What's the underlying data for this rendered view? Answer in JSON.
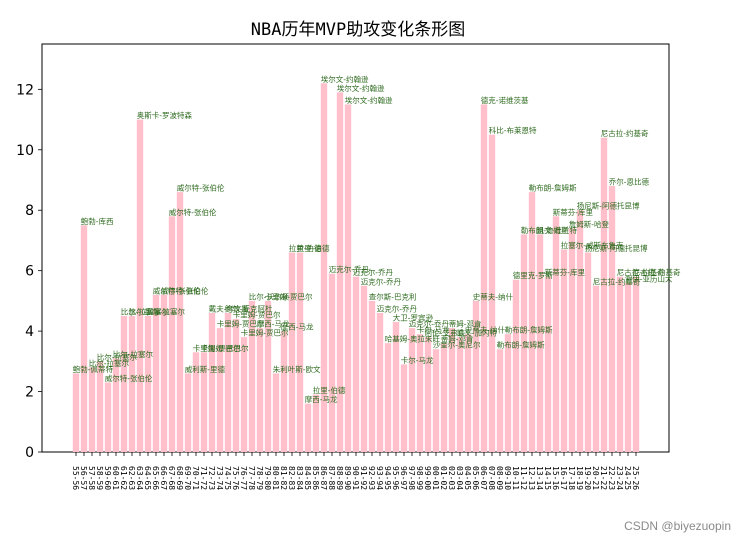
{
  "chart_data": {
    "type": "bar",
    "title": "NBA历年MVP助攻变化条形图",
    "xlabel": "",
    "ylabel": "",
    "ylim": [
      0,
      13.5
    ],
    "yticks": [
      0,
      2,
      4,
      6,
      8,
      10,
      12
    ],
    "grid": false,
    "legend": "none",
    "bar_color": "#ffc0cb",
    "label_color": "#2e6b1f",
    "categories": [
      "55-56",
      "56-57",
      "57-58",
      "58-59",
      "59-60",
      "60-61",
      "61-62",
      "62-63",
      "63-64",
      "64-65",
      "65-66",
      "66-67",
      "67-68",
      "68-69",
      "69-70",
      "70-71",
      "71-72",
      "72-73",
      "73-74",
      "74-75",
      "75-76",
      "76-77",
      "77-78",
      "78-79",
      "79-80",
      "80-81",
      "81-82",
      "82-83",
      "83-84",
      "84-85",
      "85-86",
      "86-87",
      "87-88",
      "88-89",
      "89-90",
      "90-91",
      "91-92",
      "92-93",
      "93-94",
      "94-95",
      "95-96",
      "96-97",
      "97-98",
      "98-99",
      "99-00",
      "00-01",
      "01-02",
      "02-03",
      "03-04",
      "04-05",
      "05-06",
      "06-07",
      "07-08",
      "08-09",
      "09-10",
      "10-11",
      "11-12",
      "12-13",
      "13-14",
      "14-15",
      "15-16",
      "16-17",
      "17-18",
      "18-19",
      "19-20",
      "20-21",
      "21-22",
      "22-23",
      "23-24",
      "24-25",
      "25-26"
    ],
    "values": [
      2.6,
      7.5,
      2.8,
      3.0,
      2.3,
      3.1,
      4.5,
      4.5,
      11.0,
      4.5,
      5.2,
      5.2,
      7.8,
      8.6,
      2.6,
      3.3,
      3.3,
      4.6,
      4.1,
      4.6,
      4.4,
      3.8,
      5.0,
      4.1,
      5.0,
      2.6,
      4.0,
      6.6,
      6.6,
      1.6,
      1.9,
      12.2,
      5.9,
      11.9,
      11.5,
      5.8,
      5.5,
      5.0,
      4.6,
      3.6,
      4.3,
      2.9,
      4.1,
      3.9,
      3.8,
      3.4,
      3.6,
      4.1,
      3.8,
      3.9,
      5.0,
      11.5,
      10.5,
      3.4,
      3.9,
      5.7,
      7.2,
      8.6,
      7.2,
      5.8,
      7.8,
      6.7,
      7.4,
      8.0,
      6.6,
      5.5,
      10.4,
      8.8,
      5.8,
      5.6,
      5.8
    ],
    "labels": [
      "鲍勃-佩蒂特",
      "鲍勃-库西",
      "比尔-拉塞尔",
      "比尔-拉塞尔",
      "威尔特-张伯伦",
      "比尔-拉塞尔",
      "比尔-拉塞尔",
      "比尔-拉塞尔",
      "奥斯卡-罗波特森",
      "比尔-拉塞尔",
      "威尔特-张伯伦",
      "威尔特-张伯伦",
      "威尔特-张伯伦",
      "威尔特-张伯伦",
      "威利斯-里德",
      "卡里姆-贾巴尔",
      "卡里姆-贾巴尔",
      "戴夫-考文斯",
      "卡里姆-贾巴尔",
      "鲍勃-麦克阿杜",
      "卡里姆-贾巴尔",
      "卡里姆-贾巴尔",
      "比尔-沃尔顿",
      "摩西-马龙",
      "卡里姆-贾巴尔",
      "朱利叶斯-欧文",
      "摩西-马龙",
      "拉里-伯德",
      "拉里-伯德",
      "摩西-马龙",
      "拉里-伯德",
      "埃尔文-约翰逊",
      "迈克尔-乔丹",
      "埃尔文-约翰逊",
      "埃尔文-约翰逊",
      "迈克尔-乔丹",
      "迈克尔-乔丹",
      "查尔斯-巴克利",
      "迈克尔-乔丹",
      "哈基姆-奥拉朱旺",
      "大卫-罗宾逊",
      "卡尔-马龙",
      "迈克尔-乔丹",
      "卡尔-马龙",
      "阿伦-艾弗森",
      "沙奎尔-奥尼尔",
      "蒂姆-邓肯",
      "蒂姆-邓肯",
      "凯文-加内特",
      "史蒂夫-纳什",
      "史蒂夫-纳什",
      "德克-诺维茨基",
      "科比-布莱恩特",
      "勒布朗-詹姆斯",
      "勒布朗-詹姆斯",
      "德里克-罗斯",
      "勒布朗-詹姆斯",
      "勒布朗-詹姆斯",
      "凯文-杜兰特",
      "斯蒂芬-库里",
      "斯蒂芬-库里",
      "拉塞尔-威斯布鲁克",
      "詹姆斯-哈登",
      "扬尼斯-阿德托昆博",
      "扬尼斯-阿德托昆博",
      "尼古拉-约基奇",
      "尼古拉-约基奇",
      "乔尔-恩比德",
      "尼古拉-约基奇",
      "谢伊-亚历山大",
      "尼古拉-约基奇"
    ]
  },
  "watermark": "CSDN @biyezuopin"
}
